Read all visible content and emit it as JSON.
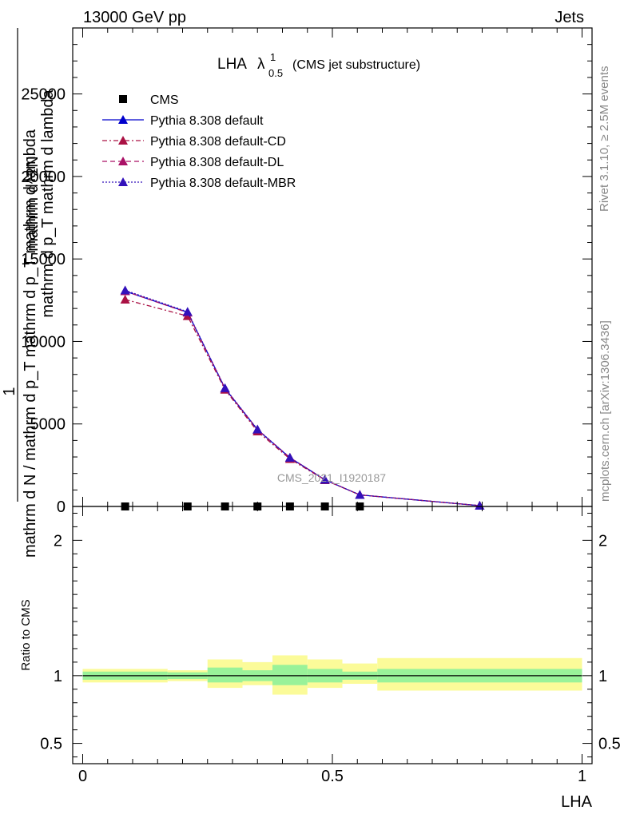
{
  "header": {
    "left": "13000 GeV pp",
    "right": "Jets"
  },
  "main_panel": {
    "title": "LHA",
    "title_suffix": "(CMS jet substructure)",
    "lambda_symbol": "λ",
    "lambda_sup": "1",
    "lambda_sub": "0.5",
    "ylabel_lines": [
      "1",
      "mathrm d N / mathrm d p_T mathrm d p_T mathrm d lambda",
      "mathrm d^2N",
      "mathrm d p_T mathrm d lambda"
    ],
    "watermark": "CMS_2021_I1920187"
  },
  "side_text": {
    "rivet": "Rivet 3.1.10, ≥ 2.5M events",
    "mcplots": "mcplots.cern.ch [arXiv:1306.3436]"
  },
  "ratio_panel": {
    "ylabel": "Ratio to CMS"
  },
  "xlabel": "LHA",
  "chart_data": {
    "type": "line",
    "xlim": [
      -0.02,
      1.02
    ],
    "ylim": [
      0,
      29000
    ],
    "xticks": [
      {
        "v": 0,
        "label": "0"
      },
      {
        "v": 0.5,
        "label": "0.5"
      },
      {
        "v": 1,
        "label": "1"
      }
    ],
    "yticks": [
      {
        "v": 0,
        "label": "0"
      },
      {
        "v": 5000,
        "label": "5000"
      },
      {
        "v": 10000,
        "label": "10000"
      },
      {
        "v": 15000,
        "label": "15000"
      },
      {
        "v": 20000,
        "label": "20000"
      },
      {
        "v": 25000,
        "label": "25000"
      }
    ],
    "grid": false,
    "legend_position": "top-left",
    "cms": {
      "name": "CMS",
      "color": "#000000",
      "x": [
        0.085,
        0.21,
        0.285,
        0.35,
        0.415,
        0.485,
        0.555
      ],
      "y": [
        0,
        0,
        0,
        0,
        0,
        0,
        0
      ]
    },
    "series": [
      {
        "name": "Pythia 8.308 default",
        "color": "#0000cc",
        "dash": "",
        "x": [
          0.085,
          0.21,
          0.285,
          0.35,
          0.415,
          0.485,
          0.555,
          0.795
        ],
        "y": [
          13050,
          11770,
          7150,
          4650,
          2950,
          1620,
          700,
          50
        ]
      },
      {
        "name": "Pythia 8.308 default-CD",
        "color": "#aa1144",
        "dash": "6,3,2,3",
        "x": [
          0.085,
          0.21,
          0.285,
          0.35,
          0.415,
          0.485,
          0.555,
          0.795
        ],
        "y": [
          12540,
          11540,
          7080,
          4550,
          2880,
          1600,
          700,
          50
        ]
      },
      {
        "name": "Pythia 8.308 default-DL",
        "color": "#aa1166",
        "dash": "6,4",
        "x": [
          0.085,
          0.21,
          0.285,
          0.35,
          0.415,
          0.485,
          0.555,
          0.795
        ],
        "y": [
          13050,
          11750,
          7160,
          4660,
          2960,
          1620,
          700,
          50
        ]
      },
      {
        "name": "Pythia 8.308 default-MBR",
        "color": "#3311bb",
        "dash": "2,2",
        "x": [
          0.085,
          0.21,
          0.285,
          0.35,
          0.415,
          0.485,
          0.555,
          0.795
        ],
        "y": [
          13100,
          11800,
          7170,
          4670,
          2960,
          1620,
          700,
          50
        ]
      }
    ],
    "ratio": {
      "ylim": [
        0.35,
        2.25
      ],
      "yticks": [
        {
          "v": 0.5,
          "label": "0.5"
        },
        {
          "v": 1,
          "label": "1"
        },
        {
          "v": 2,
          "label": "2"
        }
      ],
      "bands": [
        {
          "x0": 0.0,
          "x1": 0.17,
          "inner": [
            0.97,
            1.03
          ],
          "outer": [
            0.95,
            1.05
          ]
        },
        {
          "x0": 0.17,
          "x1": 0.25,
          "inner": [
            0.975,
            1.025
          ],
          "outer": [
            0.96,
            1.04
          ]
        },
        {
          "x0": 0.25,
          "x1": 0.32,
          "inner": [
            0.95,
            1.06
          ],
          "outer": [
            0.91,
            1.12
          ]
        },
        {
          "x0": 0.32,
          "x1": 0.38,
          "inner": [
            0.96,
            1.04
          ],
          "outer": [
            0.93,
            1.1
          ]
        },
        {
          "x0": 0.38,
          "x1": 0.45,
          "inner": [
            0.93,
            1.08
          ],
          "outer": [
            0.86,
            1.15
          ]
        },
        {
          "x0": 0.45,
          "x1": 0.52,
          "inner": [
            0.95,
            1.05
          ],
          "outer": [
            0.91,
            1.12
          ]
        },
        {
          "x0": 0.52,
          "x1": 0.59,
          "inner": [
            0.97,
            1.03
          ],
          "outer": [
            0.94,
            1.09
          ]
        },
        {
          "x0": 0.59,
          "x1": 1.0,
          "inner": [
            0.95,
            1.05
          ],
          "outer": [
            0.89,
            1.13
          ]
        }
      ],
      "inner_color": "#99f299",
      "outer_color": "#fbfb99"
    }
  }
}
